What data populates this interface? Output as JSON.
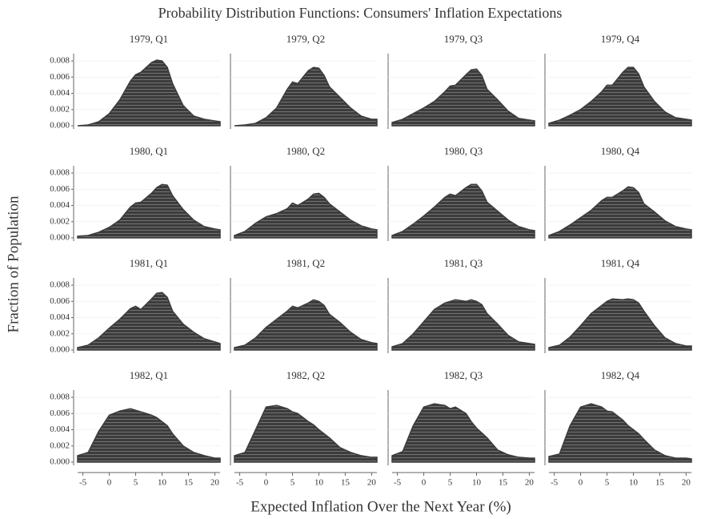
{
  "title": "Probability Distribution Functions: Consumers' Inflation Expectations",
  "xlabel": "Expected Inflation Over the Next Year (%)",
  "ylabel": "Fraction of Population",
  "xlim": [
    -6,
    21
  ],
  "ylim": [
    0,
    0.0085
  ],
  "xticks": [
    -5,
    0,
    5,
    10,
    15,
    20
  ],
  "yticks": [
    {
      "value": 0,
      "label": "0.000"
    },
    0.002,
    0.004,
    0.006,
    0.008
  ],
  "color": "#3c3c3c",
  "chart_data": [
    {
      "type": "area",
      "title": "1979, Q1",
      "x": [
        -6,
        -4,
        -2,
        0,
        2,
        4,
        5,
        6,
        8,
        9,
        10,
        11,
        12,
        14,
        16,
        18,
        20,
        21
      ],
      "values": [
        0,
        0.0001,
        0.0005,
        0.0015,
        0.0032,
        0.0055,
        0.0063,
        0.0066,
        0.0078,
        0.0081,
        0.008,
        0.0072,
        0.0052,
        0.0025,
        0.0012,
        0.0008,
        0.0006,
        0.0005
      ]
    },
    {
      "type": "area",
      "title": "1979, Q2",
      "x": [
        -6,
        -4,
        -2,
        0,
        2,
        4,
        5,
        6,
        8,
        9,
        10,
        11,
        12,
        14,
        16,
        18,
        20,
        21
      ],
      "values": [
        0,
        0.0001,
        0.0003,
        0.001,
        0.0022,
        0.0045,
        0.0054,
        0.0052,
        0.0068,
        0.0072,
        0.0071,
        0.0062,
        0.0048,
        0.0035,
        0.0022,
        0.0012,
        0.0008,
        0.0008
      ]
    },
    {
      "type": "area",
      "title": "1979, Q3",
      "x": [
        -6,
        -4,
        -2,
        0,
        2,
        4,
        5,
        6,
        8,
        9,
        10,
        11,
        12,
        14,
        16,
        18,
        20,
        21
      ],
      "values": [
        0.0004,
        0.0008,
        0.0015,
        0.0022,
        0.003,
        0.0042,
        0.0049,
        0.005,
        0.0063,
        0.0069,
        0.007,
        0.0062,
        0.0045,
        0.0032,
        0.0018,
        0.0009,
        0.0007,
        0.0006
      ]
    },
    {
      "type": "area",
      "title": "1979, Q4",
      "x": [
        -6,
        -4,
        -2,
        0,
        2,
        4,
        5,
        6,
        8,
        9,
        10,
        11,
        12,
        14,
        16,
        18,
        20,
        21
      ],
      "values": [
        0.0003,
        0.0007,
        0.0013,
        0.002,
        0.003,
        0.0042,
        0.005,
        0.005,
        0.0066,
        0.0072,
        0.0072,
        0.0064,
        0.0048,
        0.003,
        0.0017,
        0.001,
        0.0008,
        0.0007
      ]
    },
    {
      "type": "area",
      "title": "1980, Q1",
      "x": [
        -6,
        -4,
        -2,
        0,
        2,
        4,
        5,
        6,
        8,
        9,
        10,
        11,
        12,
        14,
        16,
        18,
        20,
        21
      ],
      "values": [
        0.0002,
        0.0003,
        0.0007,
        0.0013,
        0.0022,
        0.0038,
        0.0043,
        0.0044,
        0.0055,
        0.0062,
        0.0066,
        0.0065,
        0.0052,
        0.0035,
        0.0022,
        0.0014,
        0.0011,
        0.001
      ]
    },
    {
      "type": "area",
      "title": "1980, Q2",
      "x": [
        -6,
        -4,
        -2,
        0,
        2,
        4,
        5,
        6,
        8,
        9,
        10,
        11,
        12,
        14,
        16,
        18,
        20,
        21
      ],
      "values": [
        0.0003,
        0.0008,
        0.0018,
        0.0026,
        0.003,
        0.0036,
        0.0043,
        0.004,
        0.0048,
        0.0054,
        0.0055,
        0.005,
        0.0042,
        0.0032,
        0.0022,
        0.0015,
        0.0011,
        0.001
      ]
    },
    {
      "type": "area",
      "title": "1980, Q3",
      "x": [
        -6,
        -4,
        -2,
        0,
        2,
        4,
        5,
        6,
        8,
        9,
        10,
        11,
        12,
        14,
        16,
        18,
        20,
        21
      ],
      "values": [
        0.0003,
        0.0008,
        0.0017,
        0.0027,
        0.0038,
        0.005,
        0.0054,
        0.0052,
        0.0062,
        0.0066,
        0.0066,
        0.0058,
        0.0044,
        0.0033,
        0.0022,
        0.0014,
        0.001,
        0.0009
      ]
    },
    {
      "type": "area",
      "title": "1980, Q4",
      "x": [
        -6,
        -4,
        -2,
        0,
        2,
        4,
        5,
        6,
        8,
        9,
        10,
        11,
        12,
        14,
        16,
        18,
        20,
        21
      ],
      "values": [
        0.0003,
        0.0008,
        0.0016,
        0.0025,
        0.0034,
        0.0046,
        0.005,
        0.005,
        0.0058,
        0.0063,
        0.0062,
        0.0056,
        0.0042,
        0.0032,
        0.0021,
        0.0014,
        0.0011,
        0.001
      ]
    },
    {
      "type": "area",
      "title": "1981, Q1",
      "x": [
        -6,
        -4,
        -2,
        0,
        2,
        4,
        5,
        6,
        8,
        9,
        10,
        11,
        12,
        14,
        16,
        18,
        20,
        21
      ],
      "values": [
        0.0003,
        0.0006,
        0.0015,
        0.0027,
        0.0038,
        0.0051,
        0.0054,
        0.005,
        0.0063,
        0.007,
        0.0071,
        0.0065,
        0.0048,
        0.0032,
        0.0022,
        0.0014,
        0.001,
        0.0008
      ]
    },
    {
      "type": "area",
      "title": "1981, Q2",
      "x": [
        -6,
        -4,
        -2,
        0,
        2,
        4,
        5,
        6,
        8,
        9,
        10,
        11,
        12,
        14,
        16,
        18,
        20,
        21
      ],
      "values": [
        0.0003,
        0.0006,
        0.0015,
        0.0028,
        0.0038,
        0.0048,
        0.0054,
        0.0052,
        0.0058,
        0.0062,
        0.006,
        0.0055,
        0.0044,
        0.0034,
        0.0022,
        0.0013,
        0.0009,
        0.0008
      ]
    },
    {
      "type": "area",
      "title": "1981, Q3",
      "x": [
        -6,
        -4,
        -2,
        0,
        2,
        4,
        5,
        6,
        8,
        9,
        10,
        11,
        12,
        14,
        16,
        18,
        20,
        21
      ],
      "values": [
        0.0004,
        0.0008,
        0.002,
        0.0035,
        0.005,
        0.0058,
        0.006,
        0.0062,
        0.006,
        0.0062,
        0.006,
        0.0056,
        0.0045,
        0.0032,
        0.0018,
        0.001,
        0.0008,
        0.0007
      ]
    },
    {
      "type": "area",
      "title": "1981, Q4",
      "x": [
        -6,
        -4,
        -2,
        0,
        2,
        4,
        5,
        6,
        8,
        9,
        10,
        11,
        12,
        14,
        16,
        18,
        20,
        21
      ],
      "values": [
        0.0003,
        0.0006,
        0.0016,
        0.003,
        0.0045,
        0.0055,
        0.006,
        0.0063,
        0.0062,
        0.0063,
        0.0062,
        0.0058,
        0.0048,
        0.003,
        0.0015,
        0.0008,
        0.0005,
        0.0005
      ]
    },
    {
      "type": "area",
      "title": "1982, Q1",
      "x": [
        -6,
        -4,
        -2,
        0,
        2,
        4,
        5,
        6,
        8,
        9,
        10,
        11,
        12,
        14,
        16,
        18,
        20,
        21
      ],
      "values": [
        0.0008,
        0.0012,
        0.0038,
        0.0058,
        0.0063,
        0.0066,
        0.0064,
        0.0062,
        0.0058,
        0.0055,
        0.005,
        0.0045,
        0.0035,
        0.002,
        0.0012,
        0.0008,
        0.0005,
        0.0005
      ]
    },
    {
      "type": "area",
      "title": "1982, Q2",
      "x": [
        -6,
        -4,
        -2,
        0,
        2,
        4,
        5,
        6,
        8,
        9,
        10,
        11,
        12,
        14,
        16,
        18,
        20,
        21
      ],
      "values": [
        0.0008,
        0.0012,
        0.004,
        0.0068,
        0.007,
        0.0066,
        0.0062,
        0.006,
        0.005,
        0.0046,
        0.004,
        0.0035,
        0.003,
        0.0018,
        0.0012,
        0.0008,
        0.0006,
        0.0006
      ]
    },
    {
      "type": "area",
      "title": "1982, Q3",
      "x": [
        -6,
        -4,
        -2,
        0,
        2,
        4,
        5,
        6,
        8,
        9,
        10,
        11,
        12,
        14,
        16,
        18,
        20,
        21
      ],
      "values": [
        0.0008,
        0.0013,
        0.0045,
        0.0068,
        0.0072,
        0.007,
        0.0066,
        0.0068,
        0.006,
        0.005,
        0.0042,
        0.0036,
        0.003,
        0.0015,
        0.0009,
        0.0006,
        0.0005,
        0.0005
      ]
    },
    {
      "type": "area",
      "title": "1982, Q4",
      "x": [
        -6,
        -4,
        -2,
        0,
        2,
        4,
        5,
        6,
        8,
        9,
        10,
        11,
        12,
        14,
        16,
        18,
        20,
        21
      ],
      "values": [
        0.0007,
        0.001,
        0.0045,
        0.0068,
        0.0072,
        0.0068,
        0.0063,
        0.0062,
        0.0052,
        0.0045,
        0.004,
        0.0035,
        0.0028,
        0.0015,
        0.0008,
        0.0005,
        0.0005,
        0.0004
      ]
    }
  ]
}
